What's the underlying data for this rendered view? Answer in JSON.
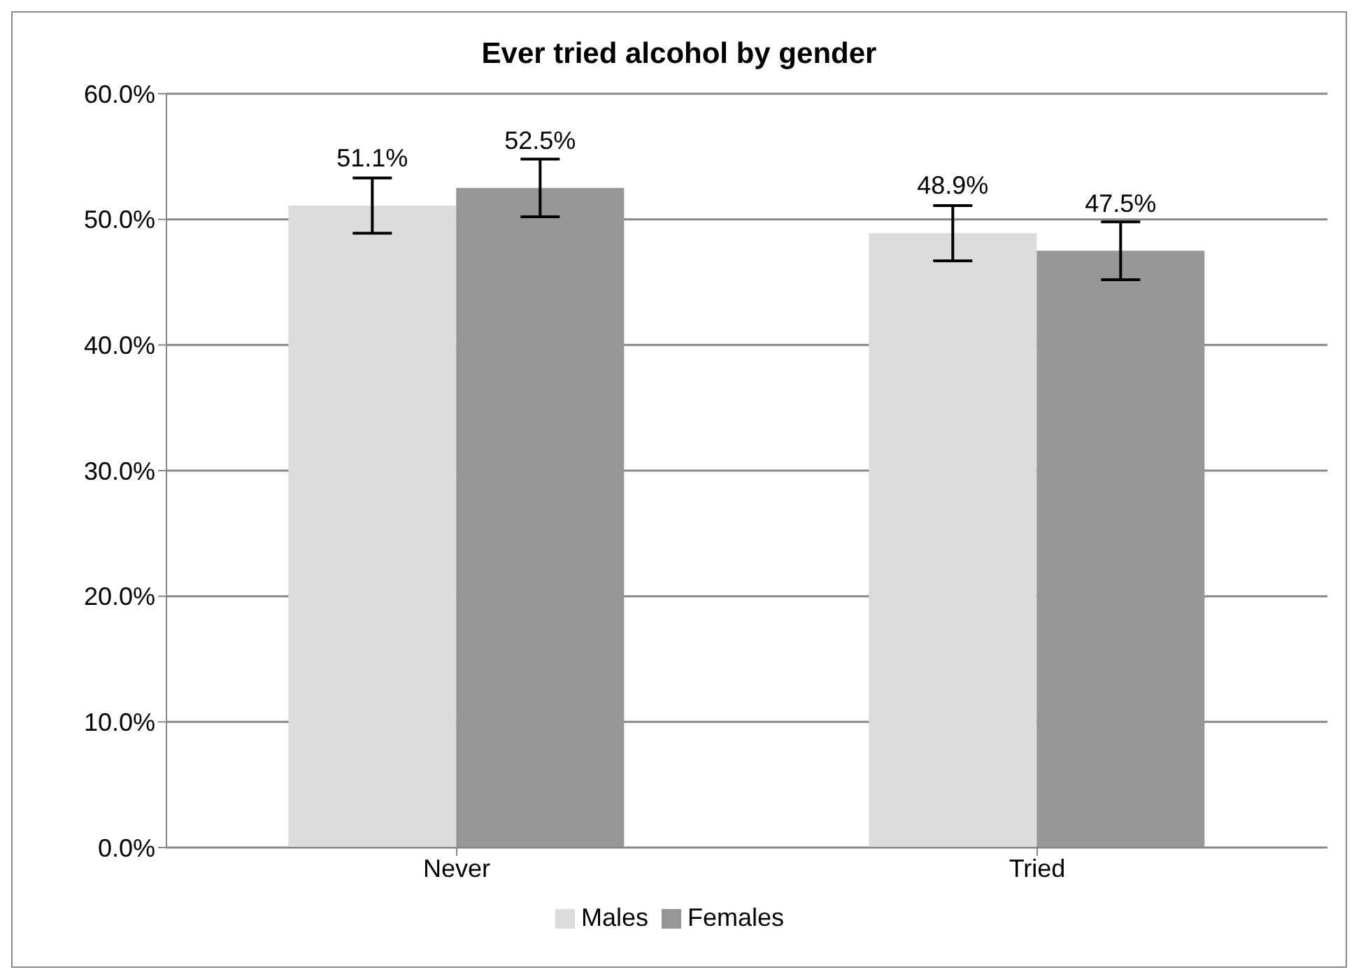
{
  "chart_data": {
    "type": "bar",
    "title": "Ever tried alcohol by gender",
    "categories": [
      "Never",
      "Tried"
    ],
    "series": [
      {
        "name": "Males",
        "color": "#dcdcdc",
        "values": [
          51.1,
          48.9
        ],
        "errors": [
          2.2,
          2.2
        ],
        "value_labels": [
          "51.1%",
          "48.9%"
        ]
      },
      {
        "name": "Females",
        "color": "#969696",
        "values": [
          52.5,
          47.5
        ],
        "errors": [
          2.3,
          2.3
        ],
        "value_labels": [
          "52.5%",
          "47.5%"
        ]
      }
    ],
    "ylim": [
      0,
      60
    ],
    "yticks": [
      {
        "value": 0,
        "label": "0.0%"
      },
      {
        "value": 10,
        "label": "10.0%"
      },
      {
        "value": 20,
        "label": "20.0%"
      },
      {
        "value": 30,
        "label": "30.0%"
      },
      {
        "value": 40,
        "label": "40.0%"
      },
      {
        "value": 50,
        "label": "50.0%"
      },
      {
        "value": 60,
        "label": "60.0%"
      }
    ],
    "grid": "y",
    "legend": "bottom"
  }
}
